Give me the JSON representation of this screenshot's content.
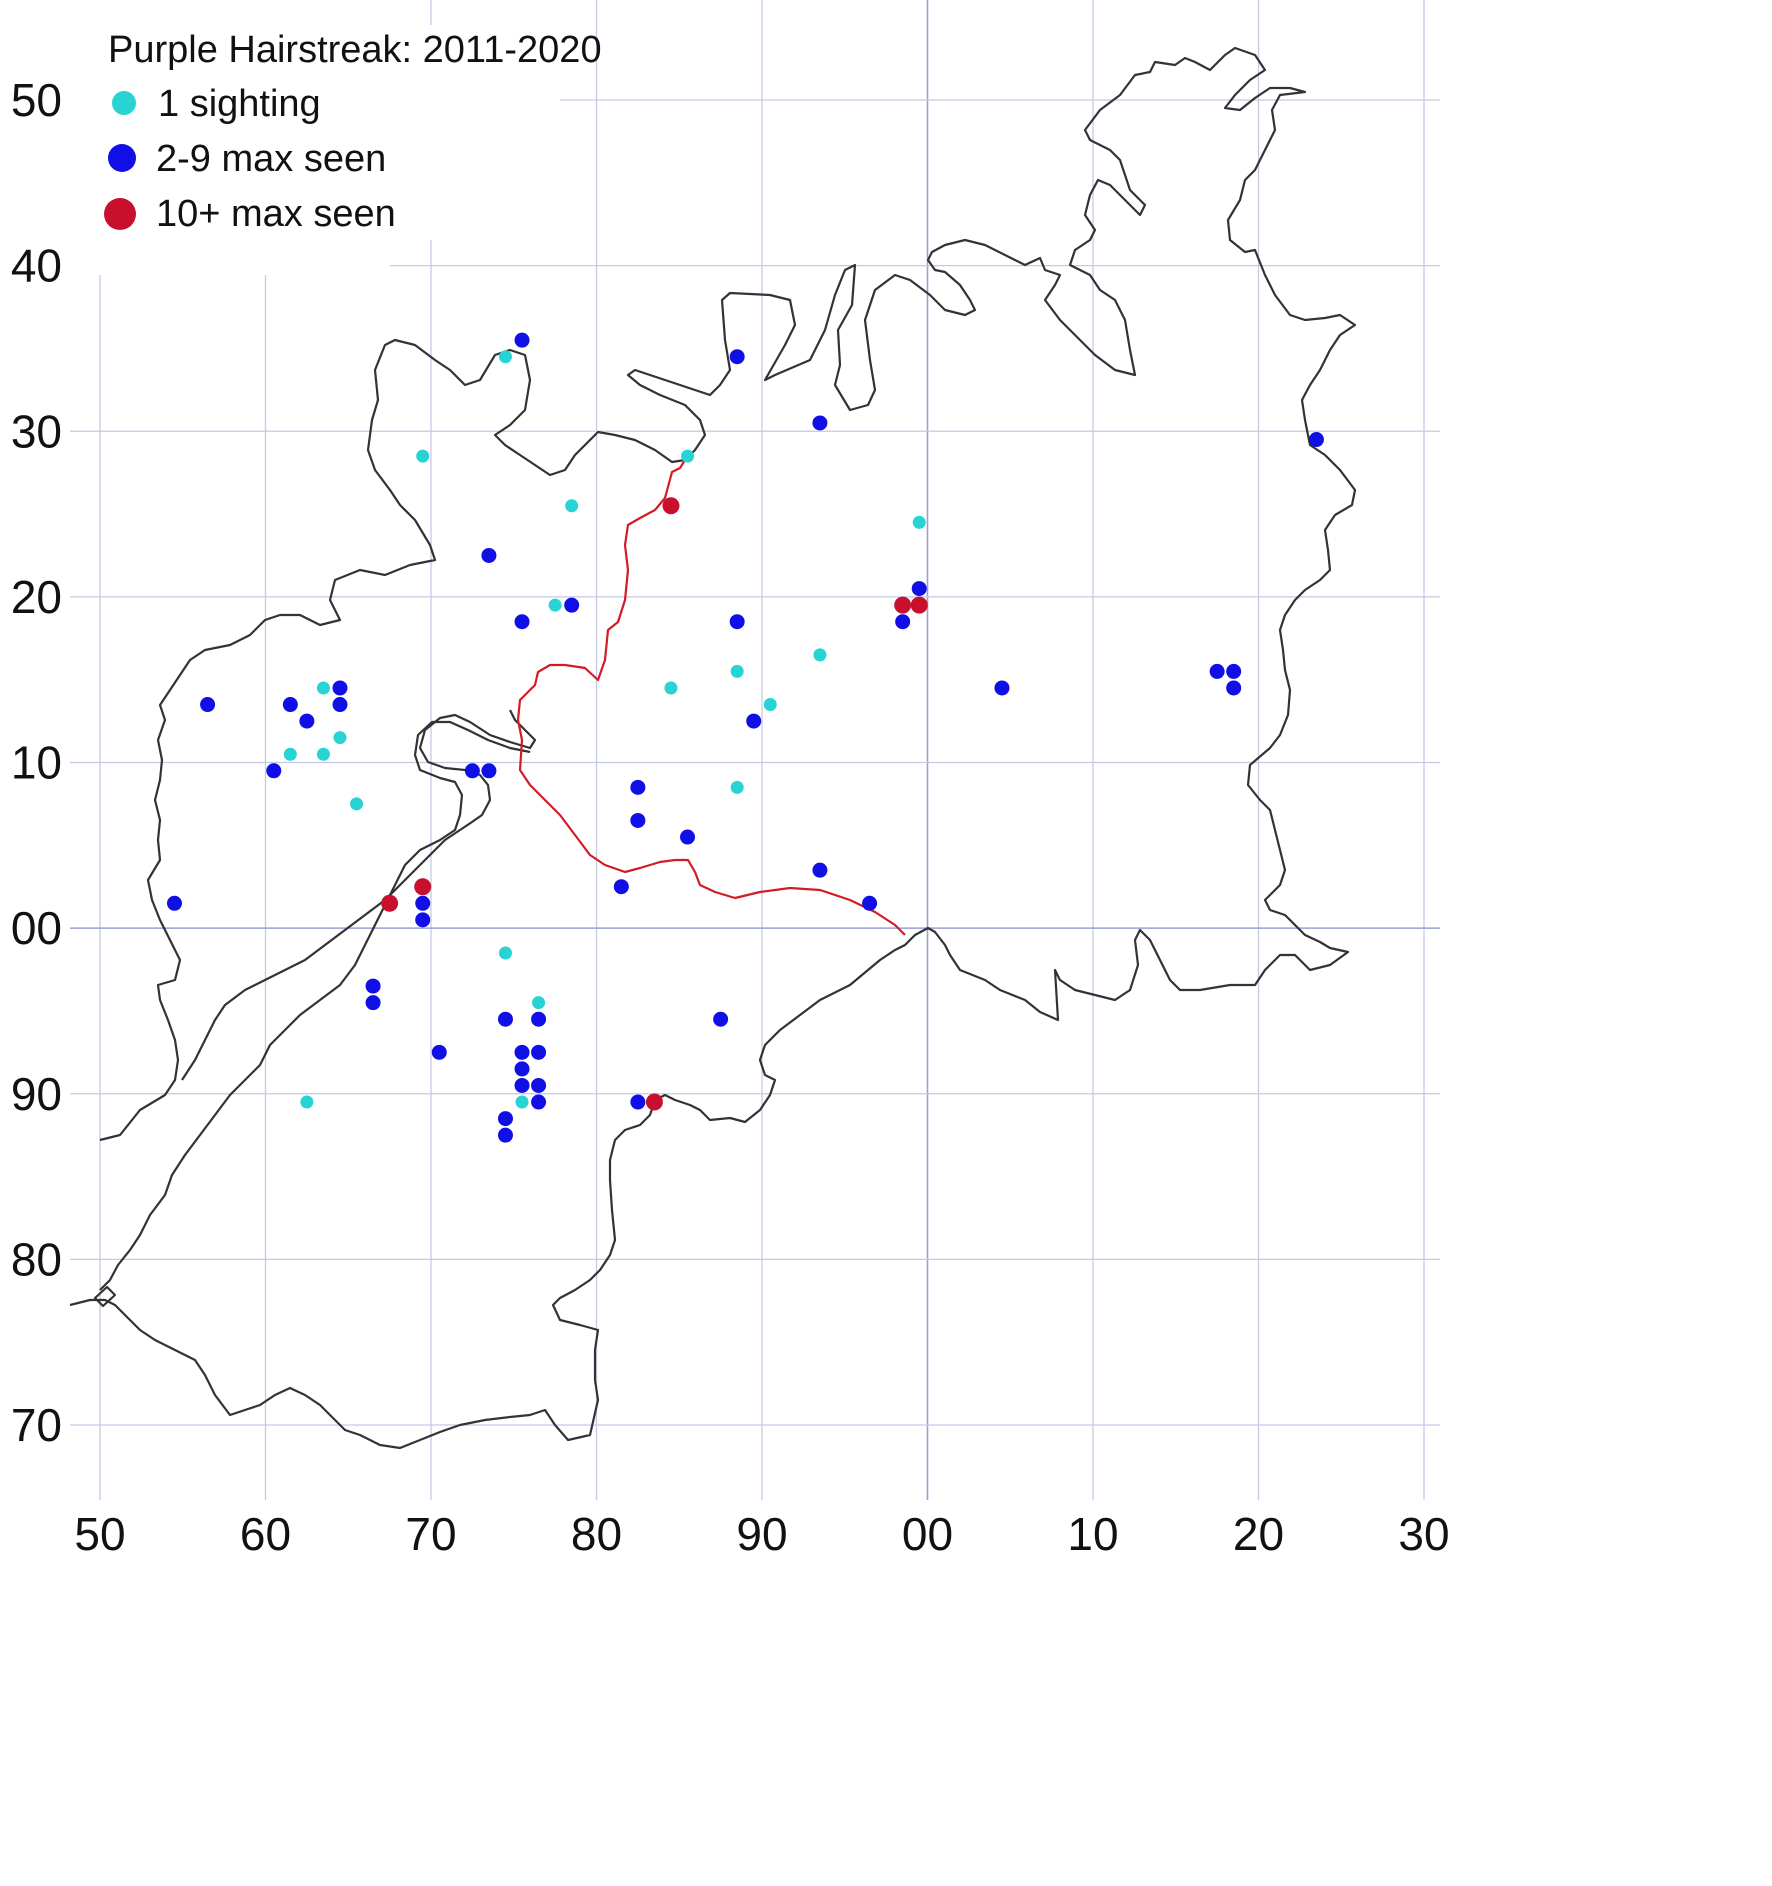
{
  "legend": {
    "title": "Purple Hairstreak:  2011-2020",
    "items": [
      {
        "label": "1 sighting",
        "color": "#27d3d3",
        "size": "small"
      },
      {
        "label": "2-9 max seen",
        "color": "#0f0fe6",
        "size": "medium"
      },
      {
        "label": "10+ max seen",
        "color": "#c8102e",
        "size": "large"
      }
    ]
  },
  "axes": {
    "x_ticks": [
      "50",
      "60",
      "70",
      "80",
      "90",
      "00",
      "10",
      "20",
      "30"
    ],
    "y_ticks": [
      "50",
      "40",
      "30",
      "20",
      "10",
      "00",
      "90",
      "80",
      "70"
    ],
    "x_range": [
      50,
      130
    ],
    "y_range": [
      70,
      150
    ],
    "grid": true
  },
  "colors": {
    "boundary": "#333333",
    "divide": "#d31b27",
    "grid": "#c5c9e6"
  },
  "chart_data": {
    "type": "scatter",
    "title": "Purple Hairstreak:  2011-2020",
    "xlabel": "",
    "ylabel": "",
    "xlim": [
      50,
      130
    ],
    "ylim": [
      70,
      150
    ],
    "series": [
      {
        "name": "1 sighting",
        "points": [
          [
            74.5,
            134.5
          ],
          [
            69.5,
            128.5
          ],
          [
            85.5,
            128.5
          ],
          [
            78.5,
            125.5
          ],
          [
            99.5,
            124.5
          ],
          [
            77.5,
            119.5
          ],
          [
            93.5,
            116.5
          ],
          [
            88.5,
            115.5
          ],
          [
            63.5,
            114.5
          ],
          [
            84.5,
            114.5
          ],
          [
            64.5,
            111.5
          ],
          [
            90.5,
            113.5
          ],
          [
            61.5,
            110.5
          ],
          [
            63.5,
            110.5
          ],
          [
            65.5,
            107.5
          ],
          [
            88.5,
            108.5
          ],
          [
            74.5,
            98.5
          ],
          [
            76.5,
            95.5
          ],
          [
            62.5,
            89.5
          ],
          [
            75.5,
            89.5
          ]
        ]
      },
      {
        "name": "2-9 max seen",
        "points": [
          [
            75.5,
            135.5
          ],
          [
            88.5,
            134.5
          ],
          [
            93.5,
            130.5
          ],
          [
            123.5,
            129.5
          ],
          [
            73.5,
            122.5
          ],
          [
            99.5,
            120.5
          ],
          [
            78.5,
            119.5
          ],
          [
            75.5,
            118.5
          ],
          [
            88.5,
            118.5
          ],
          [
            98.5,
            118.5
          ],
          [
            56.5,
            113.5
          ],
          [
            61.5,
            113.5
          ],
          [
            64.5,
            114.5
          ],
          [
            64.5,
            113.5
          ],
          [
            62.5,
            112.5
          ],
          [
            89.5,
            112.5
          ],
          [
            104.5,
            114.5
          ],
          [
            117.5,
            115.5
          ],
          [
            118.5,
            115.5
          ],
          [
            118.5,
            114.5
          ],
          [
            60.5,
            109.5
          ],
          [
            72.5,
            109.5
          ],
          [
            73.5,
            109.5
          ],
          [
            82.5,
            108.5
          ],
          [
            82.5,
            106.5
          ],
          [
            85.5,
            105.5
          ],
          [
            93.5,
            103.5
          ],
          [
            81.5,
            102.5
          ],
          [
            54.5,
            101.5
          ],
          [
            69.5,
            101.5
          ],
          [
            69.5,
            100.5
          ],
          [
            96.5,
            101.5
          ],
          [
            66.5,
            96.5
          ],
          [
            66.5,
            95.5
          ],
          [
            74.5,
            94.5
          ],
          [
            76.5,
            94.5
          ],
          [
            87.5,
            94.5
          ],
          [
            70.5,
            92.5
          ],
          [
            75.5,
            92.5
          ],
          [
            76.5,
            92.5
          ],
          [
            75.5,
            91.5
          ],
          [
            75.5,
            90.5
          ],
          [
            76.5,
            90.5
          ],
          [
            76.5,
            89.5
          ],
          [
            82.5,
            89.5
          ],
          [
            74.5,
            88.5
          ],
          [
            74.5,
            87.5
          ]
        ]
      },
      {
        "name": "10+ max seen",
        "points": [
          [
            84.5,
            125.5
          ],
          [
            98.5,
            119.5
          ],
          [
            99.5,
            119.5
          ],
          [
            69.5,
            102.5
          ],
          [
            67.5,
            101.5
          ],
          [
            83.5,
            89.5
          ]
        ]
      }
    ]
  }
}
